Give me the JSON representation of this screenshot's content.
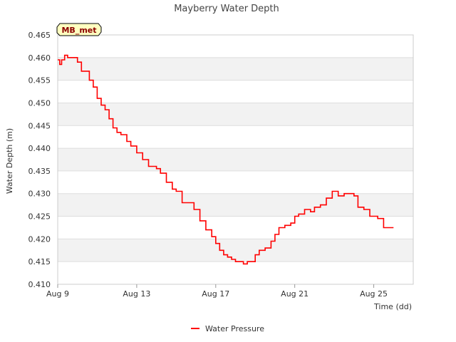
{
  "chart_data": {
    "type": "line",
    "title": "Mayberry Water Depth",
    "xlabel": "Time (dd)",
    "ylabel": "Water Depth (m)",
    "site_tag": "MB_met",
    "xlim": [
      0,
      18
    ],
    "ylim": [
      0.41,
      0.465
    ],
    "x_ticks": [
      {
        "x": 0,
        "label": "Aug 9"
      },
      {
        "x": 4,
        "label": "Aug 13"
      },
      {
        "x": 8,
        "label": "Aug 17"
      },
      {
        "x": 12,
        "label": "Aug 21"
      },
      {
        "x": 16,
        "label": "Aug 25"
      }
    ],
    "y_ticks": [
      "0.410",
      "0.415",
      "0.420",
      "0.425",
      "0.430",
      "0.435",
      "0.440",
      "0.445",
      "0.450",
      "0.455",
      "0.460",
      "0.465"
    ],
    "y_tick_values": [
      0.41,
      0.415,
      0.42,
      0.425,
      0.43,
      0.435,
      0.44,
      0.445,
      0.45,
      0.455,
      0.46,
      0.465
    ],
    "grid": true,
    "legend_position": "bottom-center",
    "series": [
      {
        "name": "Water Pressure",
        "color": "#ff0000",
        "x": [
          0.0,
          0.1,
          0.2,
          0.35,
          0.5,
          0.8,
          1.0,
          1.2,
          1.4,
          1.6,
          1.8,
          2.0,
          2.2,
          2.4,
          2.6,
          2.8,
          3.0,
          3.2,
          3.5,
          3.7,
          4.0,
          4.3,
          4.6,
          4.8,
          5.0,
          5.2,
          5.5,
          5.8,
          6.0,
          6.3,
          6.6,
          6.9,
          7.2,
          7.5,
          7.8,
          8.0,
          8.2,
          8.4,
          8.6,
          8.8,
          9.0,
          9.2,
          9.4,
          9.6,
          9.8,
          10.0,
          10.2,
          10.5,
          10.8,
          11.0,
          11.2,
          11.5,
          11.8,
          12.0,
          12.2,
          12.5,
          12.8,
          13.0,
          13.3,
          13.6,
          13.9,
          14.2,
          14.5,
          14.8,
          15.0,
          15.2,
          15.5,
          15.8,
          16.0,
          16.2,
          16.5,
          16.8,
          17.0
        ],
        "y": [
          0.4595,
          0.4585,
          0.4595,
          0.4605,
          0.46,
          0.46,
          0.459,
          0.457,
          0.457,
          0.455,
          0.4535,
          0.451,
          0.4495,
          0.4485,
          0.4465,
          0.4445,
          0.4435,
          0.443,
          0.4415,
          0.4405,
          0.439,
          0.4375,
          0.436,
          0.436,
          0.4355,
          0.4345,
          0.4325,
          0.431,
          0.4305,
          0.428,
          0.428,
          0.4265,
          0.424,
          0.422,
          0.4205,
          0.419,
          0.4175,
          0.4165,
          0.416,
          0.4155,
          0.415,
          0.415,
          0.4145,
          0.415,
          0.415,
          0.4165,
          0.4175,
          0.418,
          0.4195,
          0.421,
          0.4225,
          0.423,
          0.4235,
          0.425,
          0.4255,
          0.4265,
          0.426,
          0.427,
          0.4275,
          0.429,
          0.4305,
          0.4295,
          0.43,
          0.43,
          0.4295,
          0.427,
          0.4265,
          0.425,
          0.425,
          0.4245,
          0.4225,
          0.4225,
          0.4225
        ]
      }
    ]
  }
}
